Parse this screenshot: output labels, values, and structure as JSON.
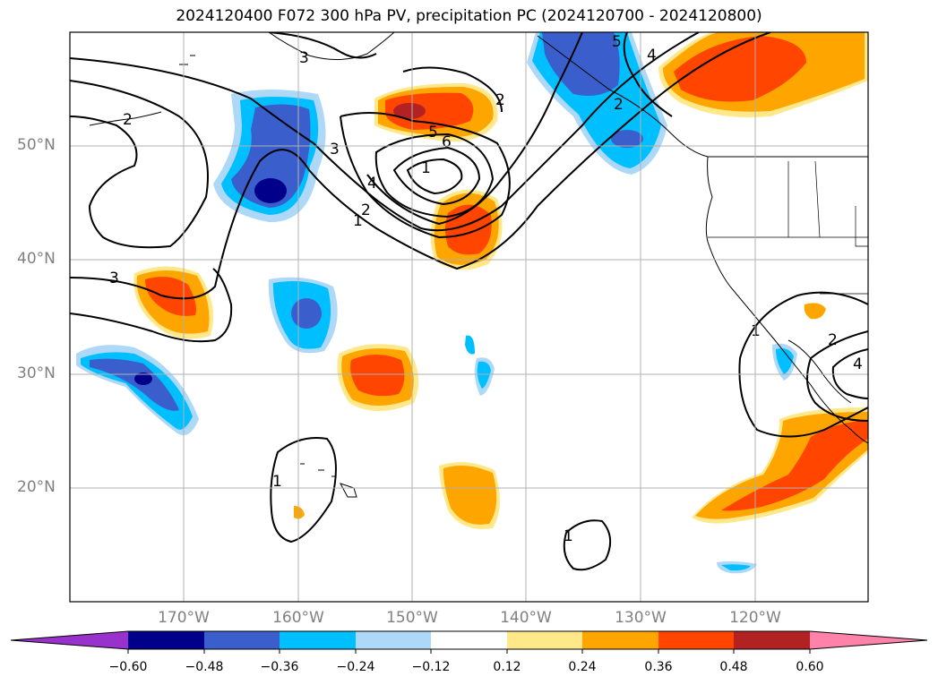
{
  "title": "2024120400 F072 300 hPa PV, precipitation PC (2024120700 - 2024120800)",
  "map": {
    "lat_labels": [
      "50°N",
      "40°N",
      "30°N",
      "20°N"
    ],
    "lon_labels": [
      "170°W",
      "160°W",
      "150°W",
      "140°W",
      "130°W",
      "120°W"
    ],
    "extent": {
      "lon_min": -180,
      "lon_max": -110,
      "lat_min": 10,
      "lat_max": 60
    }
  },
  "colorbar": {
    "ticks": [
      "−0.60",
      "−0.48",
      "−0.36",
      "−0.24",
      "−0.12",
      "0.12",
      "0.24",
      "0.36",
      "0.48",
      "0.60"
    ],
    "colors": [
      "#9932cc",
      "#00008b",
      "#3a5fcd",
      "#00bfff",
      "#add8f8",
      "#ffffff",
      "#ffe88a",
      "#ffa500",
      "#ff4500",
      "#b22222",
      "#ff82ab"
    ]
  },
  "pv_contour_labels": [
    "1",
    "2",
    "3",
    "4",
    "5",
    "6"
  ],
  "contour_label_instances": [
    "3",
    "2",
    "3",
    "3",
    "2",
    "5",
    "6",
    "4",
    "2",
    "1",
    "1",
    "2",
    "5",
    "4",
    "1",
    "1",
    "2",
    "4",
    "1"
  ]
}
